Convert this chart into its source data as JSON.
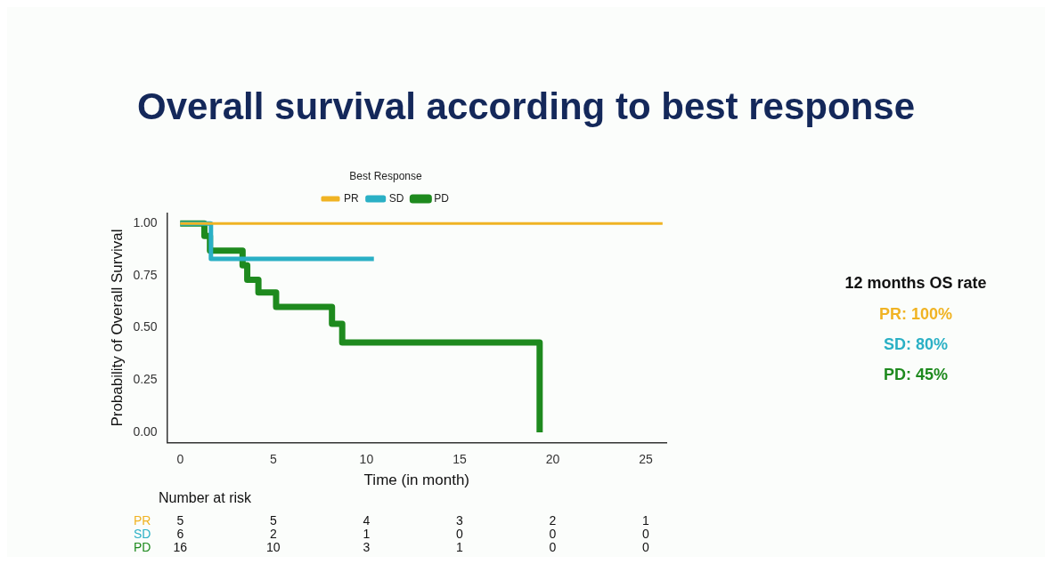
{
  "chart_data": {
    "type": "step",
    "title": "Overall survival according to best response",
    "xlabel": "Time (in month)",
    "ylabel": "Probability of Overall Survival",
    "legend_title": "Best Response",
    "legend": "top",
    "grid": false,
    "marker": "none",
    "line_style": "solid",
    "xlim": [
      -0.7,
      26.1
    ],
    "xticks": [
      0,
      5,
      10,
      15,
      20,
      25
    ],
    "ylim": [
      -0.05,
      1.05
    ],
    "yticks": [
      {
        "value": 0,
        "label": "0.00"
      },
      {
        "value": 0.25,
        "label": "0.25"
      },
      {
        "value": 0.5,
        "label": "0.50"
      },
      {
        "value": 0.75,
        "label": "0.75"
      },
      {
        "value": 1,
        "label": "1.00"
      }
    ],
    "series": [
      {
        "name": "PR",
        "color": "#f0b323",
        "x": [
          0,
          25.9
        ],
        "values": [
          1,
          1
        ]
      },
      {
        "name": "SD",
        "color": "#2ab0c5",
        "x": [
          0,
          1.65,
          10.4
        ],
        "values": [
          1,
          0.83,
          0.83
        ]
      },
      {
        "name": "PD",
        "color": "#1e8a1e",
        "x": [
          0,
          1.3,
          1.6,
          3.35,
          3.6,
          4.2,
          5.15,
          8.15,
          8.7,
          19.3
        ],
        "values": [
          1,
          0.94,
          0.87,
          0.8,
          0.73,
          0.67,
          0.6,
          0.52,
          0.43,
          0
        ]
      }
    ],
    "annotations": [
      "Number at risk",
      "PR 5 5 4 3 2 1",
      "SD 6 2 1 0 0 0",
      "PD 16 10 3 1 0 0",
      "12 months OS rate",
      "PR: 100%",
      "SD: 80%",
      "PD: 45%"
    ]
  }
}
